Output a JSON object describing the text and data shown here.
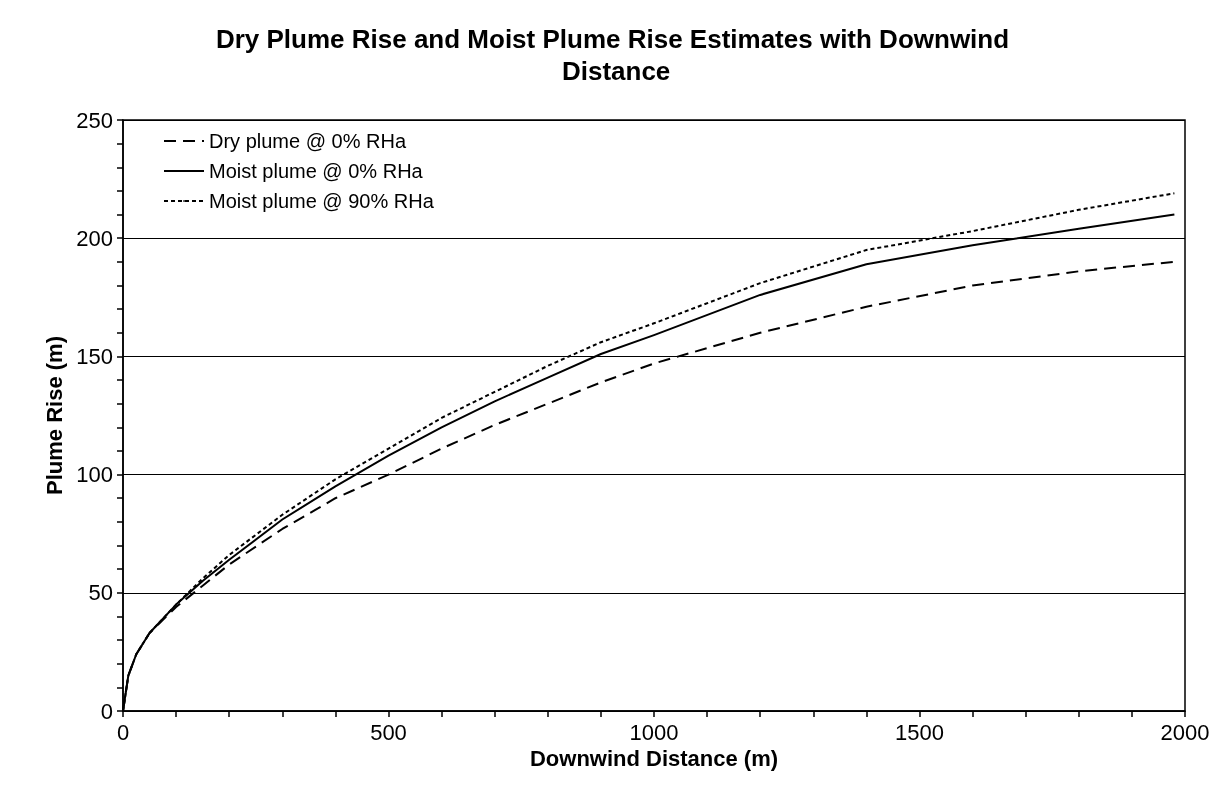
{
  "chart_data": {
    "type": "line",
    "title": "Dry Plume Rise and Moist Plume Rise Estimates with Downwind Distance",
    "xlabel": "Downwind Distance (m)",
    "ylabel": "Plume Rise (m)",
    "x": [
      0,
      10,
      25,
      50,
      100,
      150,
      200,
      300,
      400,
      500,
      600,
      700,
      800,
      900,
      1000,
      1200,
      1400,
      1600,
      1800,
      1980
    ],
    "series": [
      {
        "name": "Dry plume @ 0% RHa",
        "color": "#000000",
        "line_style": "dashed",
        "values": [
          0,
          15,
          24,
          33,
          44,
          53,
          62,
          77,
          90,
          100,
          111,
          121,
          130,
          139,
          147,
          160,
          171,
          180,
          186,
          190
        ]
      },
      {
        "name": "Moist plume @ 0% RHa",
        "color": "#000000",
        "line_style": "solid",
        "values": [
          0,
          15,
          24,
          33,
          45,
          55,
          64,
          81,
          95,
          108,
          120,
          131,
          141,
          151,
          159,
          176,
          189,
          197,
          204,
          210
        ]
      },
      {
        "name": "Moist plume @ 90% RHa",
        "color": "#000000",
        "line_style": "dotted",
        "values": [
          0,
          15,
          24,
          33,
          45,
          56,
          66,
          83,
          98,
          111,
          124,
          135,
          146,
          156,
          164,
          181,
          195,
          203,
          212,
          219
        ]
      }
    ],
    "xlim": [
      0,
      2000
    ],
    "xticks": [
      0,
      {
        "value": 100,
        "label": null
      },
      {
        "value": 200,
        "label": null
      },
      {
        "value": 300,
        "label": null
      },
      {
        "value": 400,
        "label": null
      },
      500,
      {
        "value": 600,
        "label": null
      },
      {
        "value": 700,
        "label": null
      },
      {
        "value": 800,
        "label": null
      },
      {
        "value": 900,
        "label": null
      },
      1000,
      {
        "value": 1100,
        "label": null
      },
      {
        "value": 1200,
        "label": null
      },
      {
        "value": 1300,
        "label": null
      },
      {
        "value": 1400,
        "label": null
      },
      1500,
      {
        "value": 1600,
        "label": null
      },
      {
        "value": 1700,
        "label": null
      },
      {
        "value": 1800,
        "label": null
      },
      {
        "value": 1900,
        "label": null
      },
      2000
    ],
    "ylim": [
      0,
      250
    ],
    "yticks": [
      0,
      {
        "value": 10,
        "label": null
      },
      {
        "value": 20,
        "label": null
      },
      {
        "value": 30,
        "label": null
      },
      {
        "value": 40,
        "label": null
      },
      50,
      {
        "value": 60,
        "label": null
      },
      {
        "value": 70,
        "label": null
      },
      {
        "value": 80,
        "label": null
      },
      {
        "value": 90,
        "label": null
      },
      100,
      {
        "value": 110,
        "label": null
      },
      {
        "value": 120,
        "label": null
      },
      {
        "value": 130,
        "label": null
      },
      {
        "value": 140,
        "label": null
      },
      150,
      {
        "value": 160,
        "label": null
      },
      {
        "value": 170,
        "label": null
      },
      {
        "value": 180,
        "label": null
      },
      {
        "value": 190,
        "label": null
      },
      200,
      {
        "value": 210,
        "label": null
      },
      {
        "value": 220,
        "label": null
      },
      {
        "value": 230,
        "label": null
      },
      {
        "value": 240,
        "label": null
      },
      250
    ],
    "grid": "y",
    "legend": "top left",
    "marker": "none"
  }
}
